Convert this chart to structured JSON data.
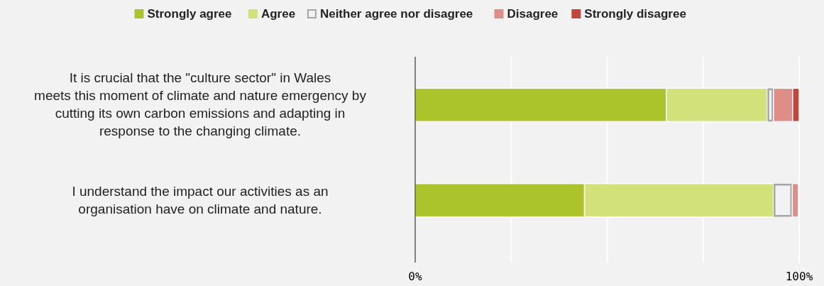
{
  "chart_data": {
    "type": "bar",
    "orientation": "horizontal",
    "stacked": true,
    "categories": [
      "It is crucial that the \"culture sector\" in Wales meets this moment of climate and nature emergency by cutting its own carbon emissions and adapting in response to the changing climate.",
      "I understand the impact our activities as an organisation have on climate and nature."
    ],
    "series": [
      {
        "name": "Strongly agree",
        "color": "#acc42b",
        "values": [
          65.4,
          44.1
        ]
      },
      {
        "name": "Agree",
        "color": "#d3e17b",
        "values": [
          26.3,
          49.2
        ]
      },
      {
        "name": "Neither agree nor disagree",
        "color": "#a6a6a6",
        "values": [
          1.6,
          4.9
        ]
      },
      {
        "name": "Disagree",
        "color": "#df8d87",
        "values": [
          5.0,
          1.6
        ]
      },
      {
        "name": "Strongly disagree",
        "color": "#c2463b",
        "values": [
          1.7,
          null
        ]
      }
    ],
    "xlim": [
      0,
      100
    ],
    "xticks": [
      {
        "value": 0,
        "label": "0%"
      },
      {
        "value": 25,
        "label": null
      },
      {
        "value": 50,
        "label": null
      },
      {
        "value": 75,
        "label": null
      },
      {
        "value": 100,
        "label": "100%"
      }
    ],
    "grid": "x",
    "legend": "top"
  }
}
